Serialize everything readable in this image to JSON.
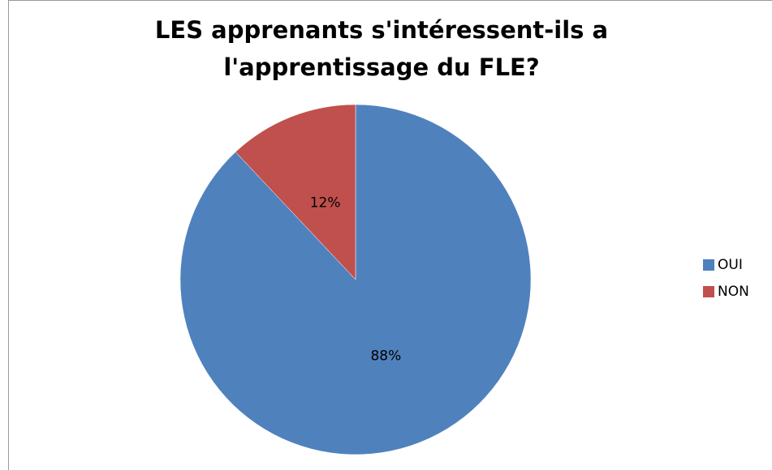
{
  "chart_data": {
    "type": "pie",
    "title": "LES apprenants s'intéressent-ils a l'apprentissage du FLE?",
    "categories": [
      "OUI",
      "NON"
    ],
    "values": [
      88,
      12
    ],
    "value_labels": [
      "88%",
      "12%"
    ],
    "colors": [
      "#4f81bd",
      "#c0504d"
    ],
    "legend": "right"
  }
}
